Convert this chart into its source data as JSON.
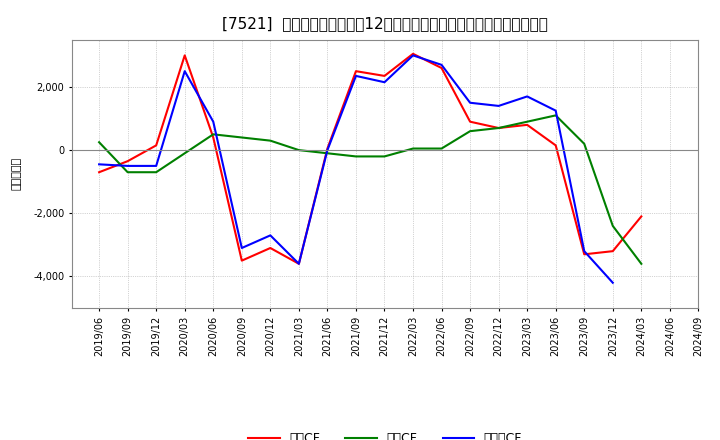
{
  "title": "[7521]  キャッシュフローの12か月移動合計の対前年同期増減額の推移",
  "ylabel": "（百万円）",
  "x_labels": [
    "2019/06",
    "2019/09",
    "2019/12",
    "2020/03",
    "2020/06",
    "2020/09",
    "2020/12",
    "2021/03",
    "2021/06",
    "2021/09",
    "2021/12",
    "2022/03",
    "2022/06",
    "2022/09",
    "2022/12",
    "2023/03",
    "2023/06",
    "2023/09",
    "2023/12",
    "2024/03",
    "2024/06",
    "2024/09"
  ],
  "eigyo_cf": [
    -700,
    -350,
    150,
    3000,
    400,
    -3500,
    -3100,
    -3600,
    50,
    2500,
    2350,
    3050,
    2600,
    900,
    700,
    800,
    150,
    -3300,
    -3200,
    -2100,
    null,
    null
  ],
  "toshi_cf": [
    250,
    -700,
    -700,
    -100,
    500,
    400,
    300,
    0,
    -100,
    -200,
    -200,
    50,
    50,
    600,
    700,
    900,
    1100,
    200,
    -2400,
    -3600,
    null,
    null
  ],
  "free_cf": [
    -450,
    -500,
    -500,
    2500,
    900,
    -3100,
    -2700,
    -3600,
    0,
    2350,
    2150,
    3000,
    2700,
    1500,
    1400,
    1700,
    1250,
    -3200,
    -4200,
    null,
    null,
    null
  ],
  "eigyo_color": "#FF0000",
  "toshi_color": "#008000",
  "free_color": "#0000FF",
  "legend_eigyo": "営業CF",
  "legend_toshi": "投資CF",
  "legend_free": "フリーCF",
  "ylim": [
    -5000,
    3500
  ],
  "yticks": [
    -4000,
    -2000,
    0,
    2000
  ],
  "background_color": "#FFFFFF",
  "grid_color": "#AAAAAA",
  "title_fontsize": 11
}
